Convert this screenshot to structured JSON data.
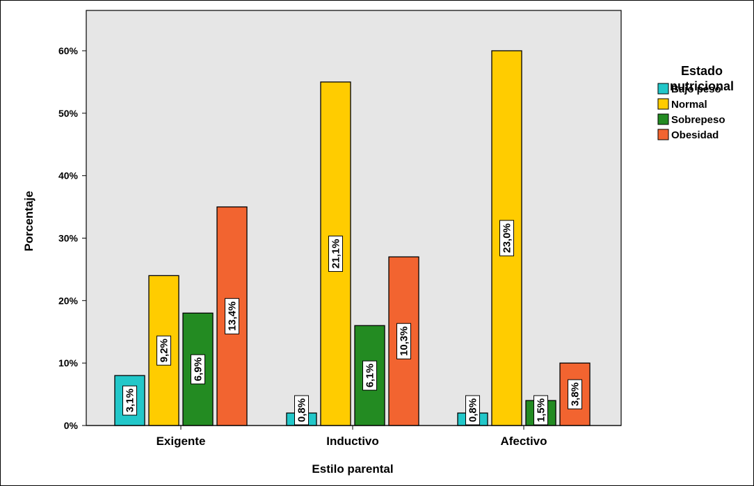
{
  "chart_data": {
    "type": "bar",
    "xlabel": "Estilo parental",
    "ylabel": "Porcentaje",
    "ylim": [
      0,
      65
    ],
    "yticks": [
      0,
      10,
      20,
      30,
      40,
      50,
      60
    ],
    "ytick_labels": [
      "0%",
      "10%",
      "20%",
      "30%",
      "40%",
      "50%",
      "60%"
    ],
    "categories": [
      "Exigente",
      "Inductivo",
      "Afectivo"
    ],
    "legend": {
      "title": "Estado nutricional",
      "title_lines": [
        "Estado",
        "nutricional"
      ],
      "placement": "right"
    },
    "series": [
      {
        "name": "Bajo peso",
        "color": "#22c7c9",
        "values": [
          8,
          2,
          2
        ],
        "labels": [
          "3,1%",
          "0,8%",
          "0,8%"
        ]
      },
      {
        "name": "Normal",
        "color": "#ffcc00",
        "values": [
          24,
          55,
          60
        ],
        "labels": [
          "9,2%",
          "21,1%",
          "23,0%"
        ]
      },
      {
        "name": "Sobrepeso",
        "color": "#238b22",
        "values": [
          18,
          16,
          4
        ],
        "labels": [
          "6,9%",
          "6,1%",
          "1,5%"
        ]
      },
      {
        "name": "Obesidad",
        "color": "#f26430",
        "values": [
          35,
          27,
          10
        ],
        "labels": [
          "13,4%",
          "10,3%",
          "3,8%"
        ]
      }
    ],
    "plot_background": "#e6e6e6",
    "grid": false
  }
}
